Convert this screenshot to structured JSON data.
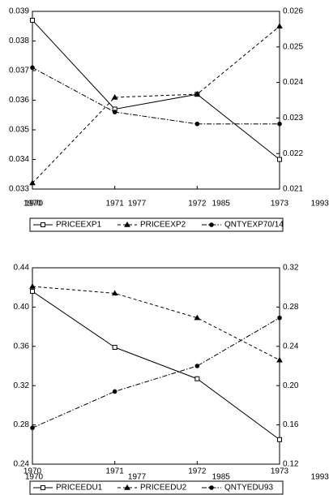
{
  "chart_data": [
    {
      "type": "line",
      "categories": [
        "1970",
        "1971",
        "1972",
        "1973"
      ],
      "x2ticks": [
        1970,
        1977,
        1985,
        1993
      ],
      "ylim": [
        0.033,
        0.039
      ],
      "yticks": [
        0.033,
        0.034,
        0.035,
        0.036,
        0.037,
        0.038,
        0.039
      ],
      "y2lim": [
        0.021,
        0.026
      ],
      "y2ticks": [
        0.021,
        0.022,
        0.023,
        0.024,
        0.025,
        0.026
      ],
      "legend": "bottom",
      "series": [
        {
          "name": "PRICEEXP1",
          "color": "#000000",
          "line_style": "solid",
          "marker": "square",
          "values": [
            0.0387,
            0.0357,
            0.0362,
            0.034
          ]
        },
        {
          "name": "PRICEEXP2",
          "color": "#000000",
          "line_style": "dashed",
          "marker": "triangle",
          "axis": "y2",
          "values": [
            0.02117,
            0.02358,
            0.02367,
            0.02558
          ]
        },
        {
          "name": "QNTYEXP70/14",
          "color": "#000000",
          "line_style": "dashdot",
          "marker": "circle",
          "values": [
            0.0371,
            0.0356,
            0.0352,
            0.0352
          ]
        }
      ]
    },
    {
      "type": "line",
      "categories": [
        "1970",
        "1971",
        "1972",
        "1973"
      ],
      "x2ticks": [
        1970,
        1977,
        1985,
        1993
      ],
      "ylim": [
        0.24,
        0.44
      ],
      "yticks": [
        0.24,
        0.28,
        0.32,
        0.36,
        {
          "value": 0.4,
          "label": "0.40"
        },
        0.44
      ],
      "y2lim": [
        0.12,
        0.32
      ],
      "y2ticks": [
        0.12,
        0.16,
        {
          "value": 0.2,
          "label": "0.20"
        },
        0.24,
        0.28,
        0.32
      ],
      "legend": "bottom",
      "series": [
        {
          "name": "PRICEEDU1",
          "color": "#000000",
          "line_style": "solid",
          "marker": "square",
          "values": [
            0.416,
            0.359,
            0.327,
            0.265
          ]
        },
        {
          "name": "PRICEEDU2",
          "color": "#000000",
          "line_style": "dashed",
          "marker": "triangle",
          "axis": "y2",
          "values": [
            0.301,
            0.294,
            0.269,
            0.226
          ]
        },
        {
          "name": "QNTYEDU93",
          "color": "#000000",
          "line_style": "dashdot",
          "marker": "circle",
          "values": [
            0.277,
            0.314,
            0.34,
            0.389
          ]
        }
      ]
    }
  ]
}
